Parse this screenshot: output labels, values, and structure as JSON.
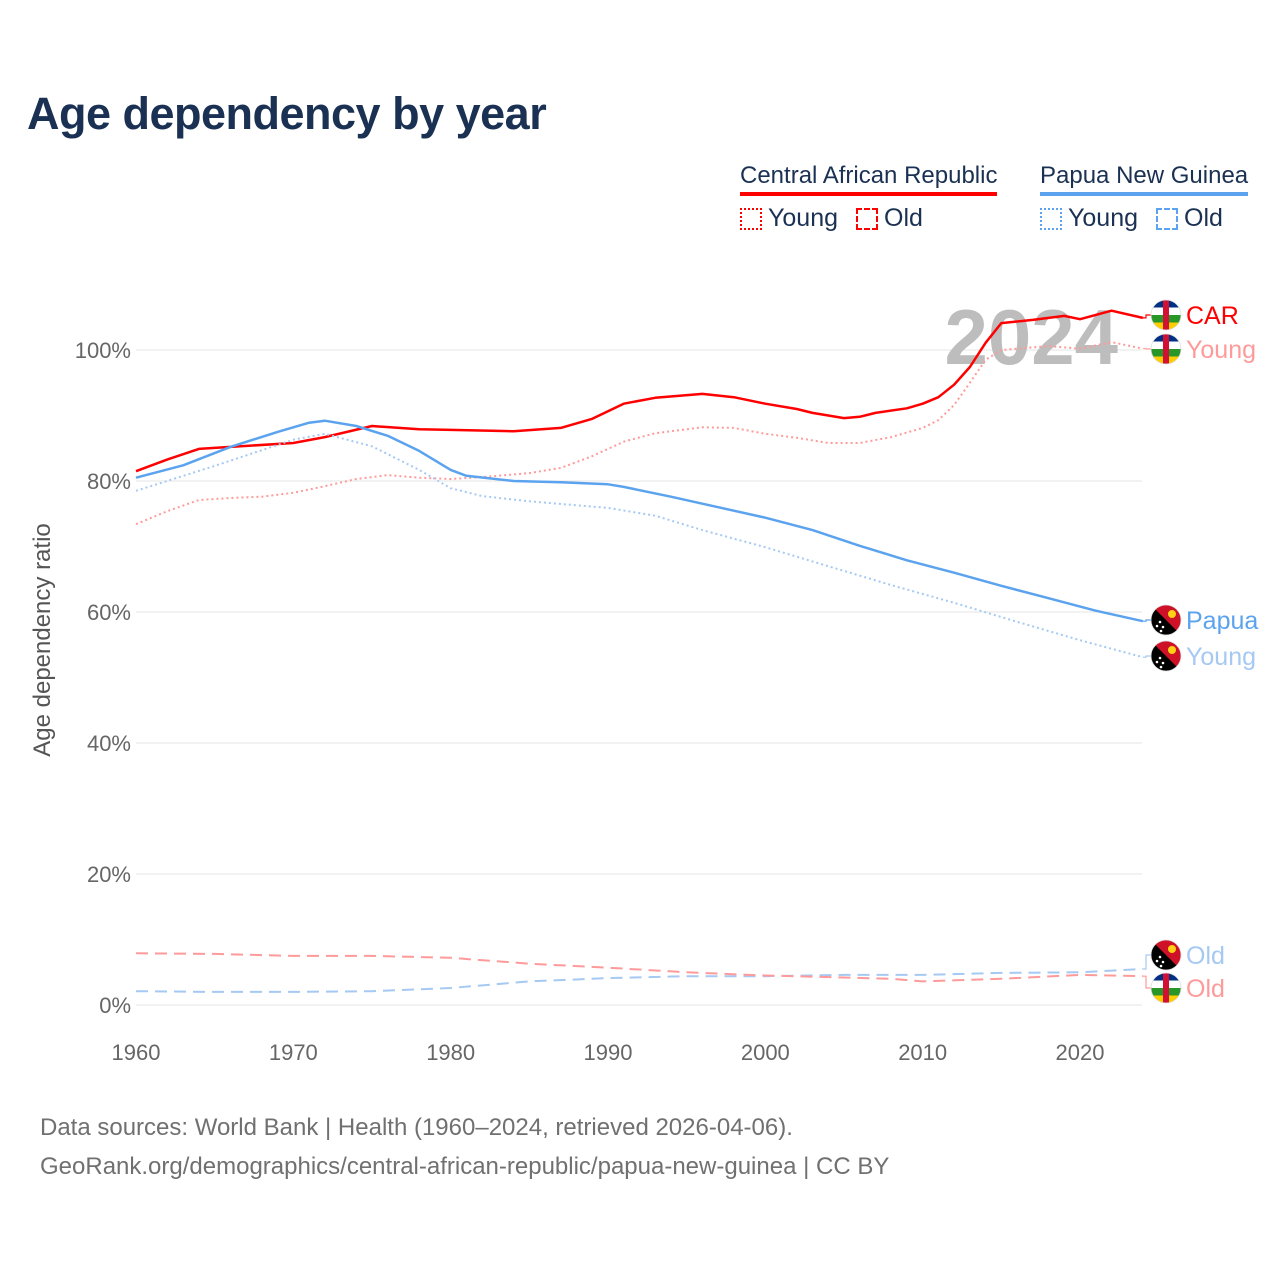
{
  "title": "Age dependency by year",
  "legend": {
    "groups": [
      {
        "name": "Central African Republic",
        "color": "#ff0000",
        "items": [
          "Young",
          "Old"
        ]
      },
      {
        "name": "Papua New Guinea",
        "color": "#5ba3ee",
        "items": [
          "Young",
          "Old"
        ]
      }
    ]
  },
  "footer": {
    "line1": "Data sources: World Bank | Health (1960–2024, retrieved 2026-04-06).",
    "line2": "GeoRank.org/demographics/central-african-republic/papua-new-guinea | CC BY"
  },
  "chart_data": {
    "type": "line",
    "title": "Age dependency by year",
    "xlabel": "",
    "ylabel": "Age dependency ratio",
    "xlim": [
      1960,
      2024
    ],
    "ylim": [
      0,
      110
    ],
    "x_ticks": [
      "1960",
      "1970",
      "1980",
      "1990",
      "2000",
      "2010",
      "2020"
    ],
    "y_ticks": [
      "0%",
      "20%",
      "40%",
      "60%",
      "80%",
      "100%"
    ],
    "year_watermark": "2024",
    "grid": true,
    "series": [
      {
        "name": "CAR",
        "label": "CAR",
        "country": "Central African Republic",
        "kind": "total",
        "color": "#ff0000",
        "dash": "solid",
        "points": [
          [
            1960,
            81.5
          ],
          [
            1962,
            83.3
          ],
          [
            1964,
            84.9
          ],
          [
            1966,
            85.2
          ],
          [
            1970,
            85.8
          ],
          [
            1972,
            86.7
          ],
          [
            1975,
            88.4
          ],
          [
            1978,
            87.9
          ],
          [
            1980,
            87.8
          ],
          [
            1984,
            87.6
          ],
          [
            1987,
            88.1
          ],
          [
            1989,
            89.5
          ],
          [
            1991,
            91.8
          ],
          [
            1993,
            92.7
          ],
          [
            1996,
            93.3
          ],
          [
            1998,
            92.8
          ],
          [
            2000,
            91.8
          ],
          [
            2002,
            91.0
          ],
          [
            2003,
            90.4
          ],
          [
            2005,
            89.6
          ],
          [
            2006,
            89.8
          ],
          [
            2007,
            90.4
          ],
          [
            2009,
            91.1
          ],
          [
            2010,
            91.8
          ],
          [
            2011,
            92.8
          ],
          [
            2012,
            94.7
          ],
          [
            2013,
            97.4
          ],
          [
            2014,
            101.1
          ],
          [
            2015,
            104.1
          ],
          [
            2017,
            104.6
          ],
          [
            2019,
            105.2
          ],
          [
            2020,
            104.7
          ],
          [
            2022,
            106.0
          ],
          [
            2024,
            104.9
          ]
        ]
      },
      {
        "name": "CAR Young",
        "label": "Young",
        "country": "Central African Republic",
        "kind": "young",
        "color": "#ff9a9a",
        "dash": "dotted",
        "points": [
          [
            1960,
            73.4
          ],
          [
            1962,
            75.4
          ],
          [
            1964,
            77.1
          ],
          [
            1966,
            77.4
          ],
          [
            1968,
            77.6
          ],
          [
            1970,
            78.2
          ],
          [
            1972,
            79.2
          ],
          [
            1974,
            80.3
          ],
          [
            1976,
            80.9
          ],
          [
            1978,
            80.5
          ],
          [
            1980,
            80.3
          ],
          [
            1982,
            80.6
          ],
          [
            1985,
            81.2
          ],
          [
            1987,
            82.0
          ],
          [
            1989,
            83.8
          ],
          [
            1991,
            86.0
          ],
          [
            1993,
            87.3
          ],
          [
            1996,
            88.2
          ],
          [
            1998,
            88.1
          ],
          [
            2000,
            87.2
          ],
          [
            2002,
            86.6
          ],
          [
            2004,
            85.8
          ],
          [
            2006,
            85.8
          ],
          [
            2008,
            86.7
          ],
          [
            2010,
            88.1
          ],
          [
            2011,
            89.3
          ],
          [
            2012,
            91.6
          ],
          [
            2013,
            95.0
          ],
          [
            2014,
            98.5
          ],
          [
            2015,
            100.0
          ],
          [
            2018,
            100.6
          ],
          [
            2020,
            100.2
          ],
          [
            2022,
            101.2
          ],
          [
            2024,
            100.2
          ]
        ]
      },
      {
        "name": "PNG",
        "label": "Papua",
        "country": "Papua New Guinea",
        "kind": "total",
        "color": "#5ba3ee",
        "dash": "solid",
        "points": [
          [
            1960,
            80.5
          ],
          [
            1963,
            82.4
          ],
          [
            1966,
            85.2
          ],
          [
            1969,
            87.5
          ],
          [
            1971,
            88.9
          ],
          [
            1972,
            89.2
          ],
          [
            1974,
            88.4
          ],
          [
            1976,
            86.9
          ],
          [
            1978,
            84.6
          ],
          [
            1980,
            81.7
          ],
          [
            1981,
            80.8
          ],
          [
            1984,
            80.0
          ],
          [
            1987,
            79.8
          ],
          [
            1990,
            79.5
          ],
          [
            1991,
            79.1
          ],
          [
            1994,
            77.6
          ],
          [
            1997,
            76.0
          ],
          [
            2000,
            74.4
          ],
          [
            2003,
            72.5
          ],
          [
            2006,
            70.1
          ],
          [
            2009,
            67.9
          ],
          [
            2012,
            66.0
          ],
          [
            2015,
            64.0
          ],
          [
            2018,
            62.1
          ],
          [
            2021,
            60.2
          ],
          [
            2024,
            58.6
          ]
        ]
      },
      {
        "name": "PNG Young",
        "label": "Young",
        "country": "Papua New Guinea",
        "kind": "young",
        "color": "#a5c9f3",
        "dash": "dotted",
        "points": [
          [
            1960,
            78.5
          ],
          [
            1965,
            82.3
          ],
          [
            1970,
            86.3
          ],
          [
            1972,
            87.2
          ],
          [
            1975,
            85.3
          ],
          [
            1978,
            81.7
          ],
          [
            1980,
            78.9
          ],
          [
            1982,
            77.7
          ],
          [
            1985,
            76.9
          ],
          [
            1990,
            75.9
          ],
          [
            1993,
            74.7
          ],
          [
            1996,
            72.5
          ],
          [
            2000,
            69.9
          ],
          [
            2004,
            67.0
          ],
          [
            2008,
            64.1
          ],
          [
            2012,
            61.4
          ],
          [
            2016,
            58.5
          ],
          [
            2020,
            55.7
          ],
          [
            2024,
            53.1
          ]
        ]
      },
      {
        "name": "PNG Old",
        "label": "Old",
        "country": "Papua New Guinea",
        "kind": "old",
        "color": "#a5c9f3",
        "dash": "dashed",
        "points": [
          [
            1960,
            2.1
          ],
          [
            1965,
            2.0
          ],
          [
            1970,
            2.0
          ],
          [
            1975,
            2.1
          ],
          [
            1980,
            2.6
          ],
          [
            1985,
            3.6
          ],
          [
            1990,
            4.1
          ],
          [
            1995,
            4.4
          ],
          [
            2000,
            4.4
          ],
          [
            2005,
            4.6
          ],
          [
            2010,
            4.6
          ],
          [
            2015,
            4.9
          ],
          [
            2020,
            5.0
          ],
          [
            2024,
            5.5
          ]
        ]
      },
      {
        "name": "CAR Old",
        "label": "Old",
        "country": "Central African Republic",
        "kind": "old",
        "color": "#ff9a9a",
        "dash": "dashed",
        "points": [
          [
            1960,
            7.9
          ],
          [
            1965,
            7.8
          ],
          [
            1970,
            7.5
          ],
          [
            1975,
            7.5
          ],
          [
            1980,
            7.2
          ],
          [
            1985,
            6.3
          ],
          [
            1990,
            5.7
          ],
          [
            1995,
            5.0
          ],
          [
            2000,
            4.5
          ],
          [
            2005,
            4.2
          ],
          [
            2008,
            4.0
          ],
          [
            2010,
            3.6
          ],
          [
            2015,
            4.0
          ],
          [
            2020,
            4.6
          ],
          [
            2024,
            4.4
          ]
        ]
      }
    ]
  }
}
